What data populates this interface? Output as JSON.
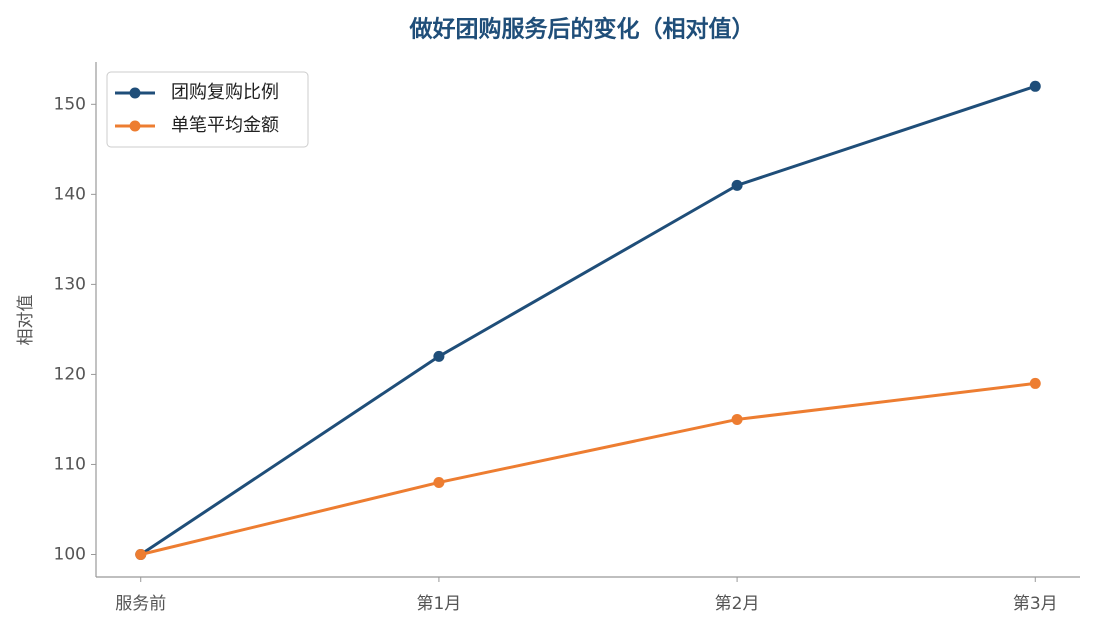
{
  "chart_data": {
    "type": "line",
    "title": "做好团购服务后的变化（相对值）",
    "y_label": "相对值",
    "categories": [
      "服务前",
      "第1月",
      "第2月",
      "第3月"
    ],
    "series": [
      {
        "name": "团购复购比例",
        "color": "#1f4e79",
        "values": [
          100,
          122,
          141,
          152
        ]
      },
      {
        "name": "单笔平均金额",
        "color": "#ed7d31",
        "values": [
          100,
          108,
          115,
          119
        ]
      }
    ],
    "ylim": [
      97.5,
      154.7
    ],
    "yticks": [
      100,
      110,
      120,
      130,
      140,
      150
    ],
    "grid": false,
    "legend": "upper left"
  }
}
